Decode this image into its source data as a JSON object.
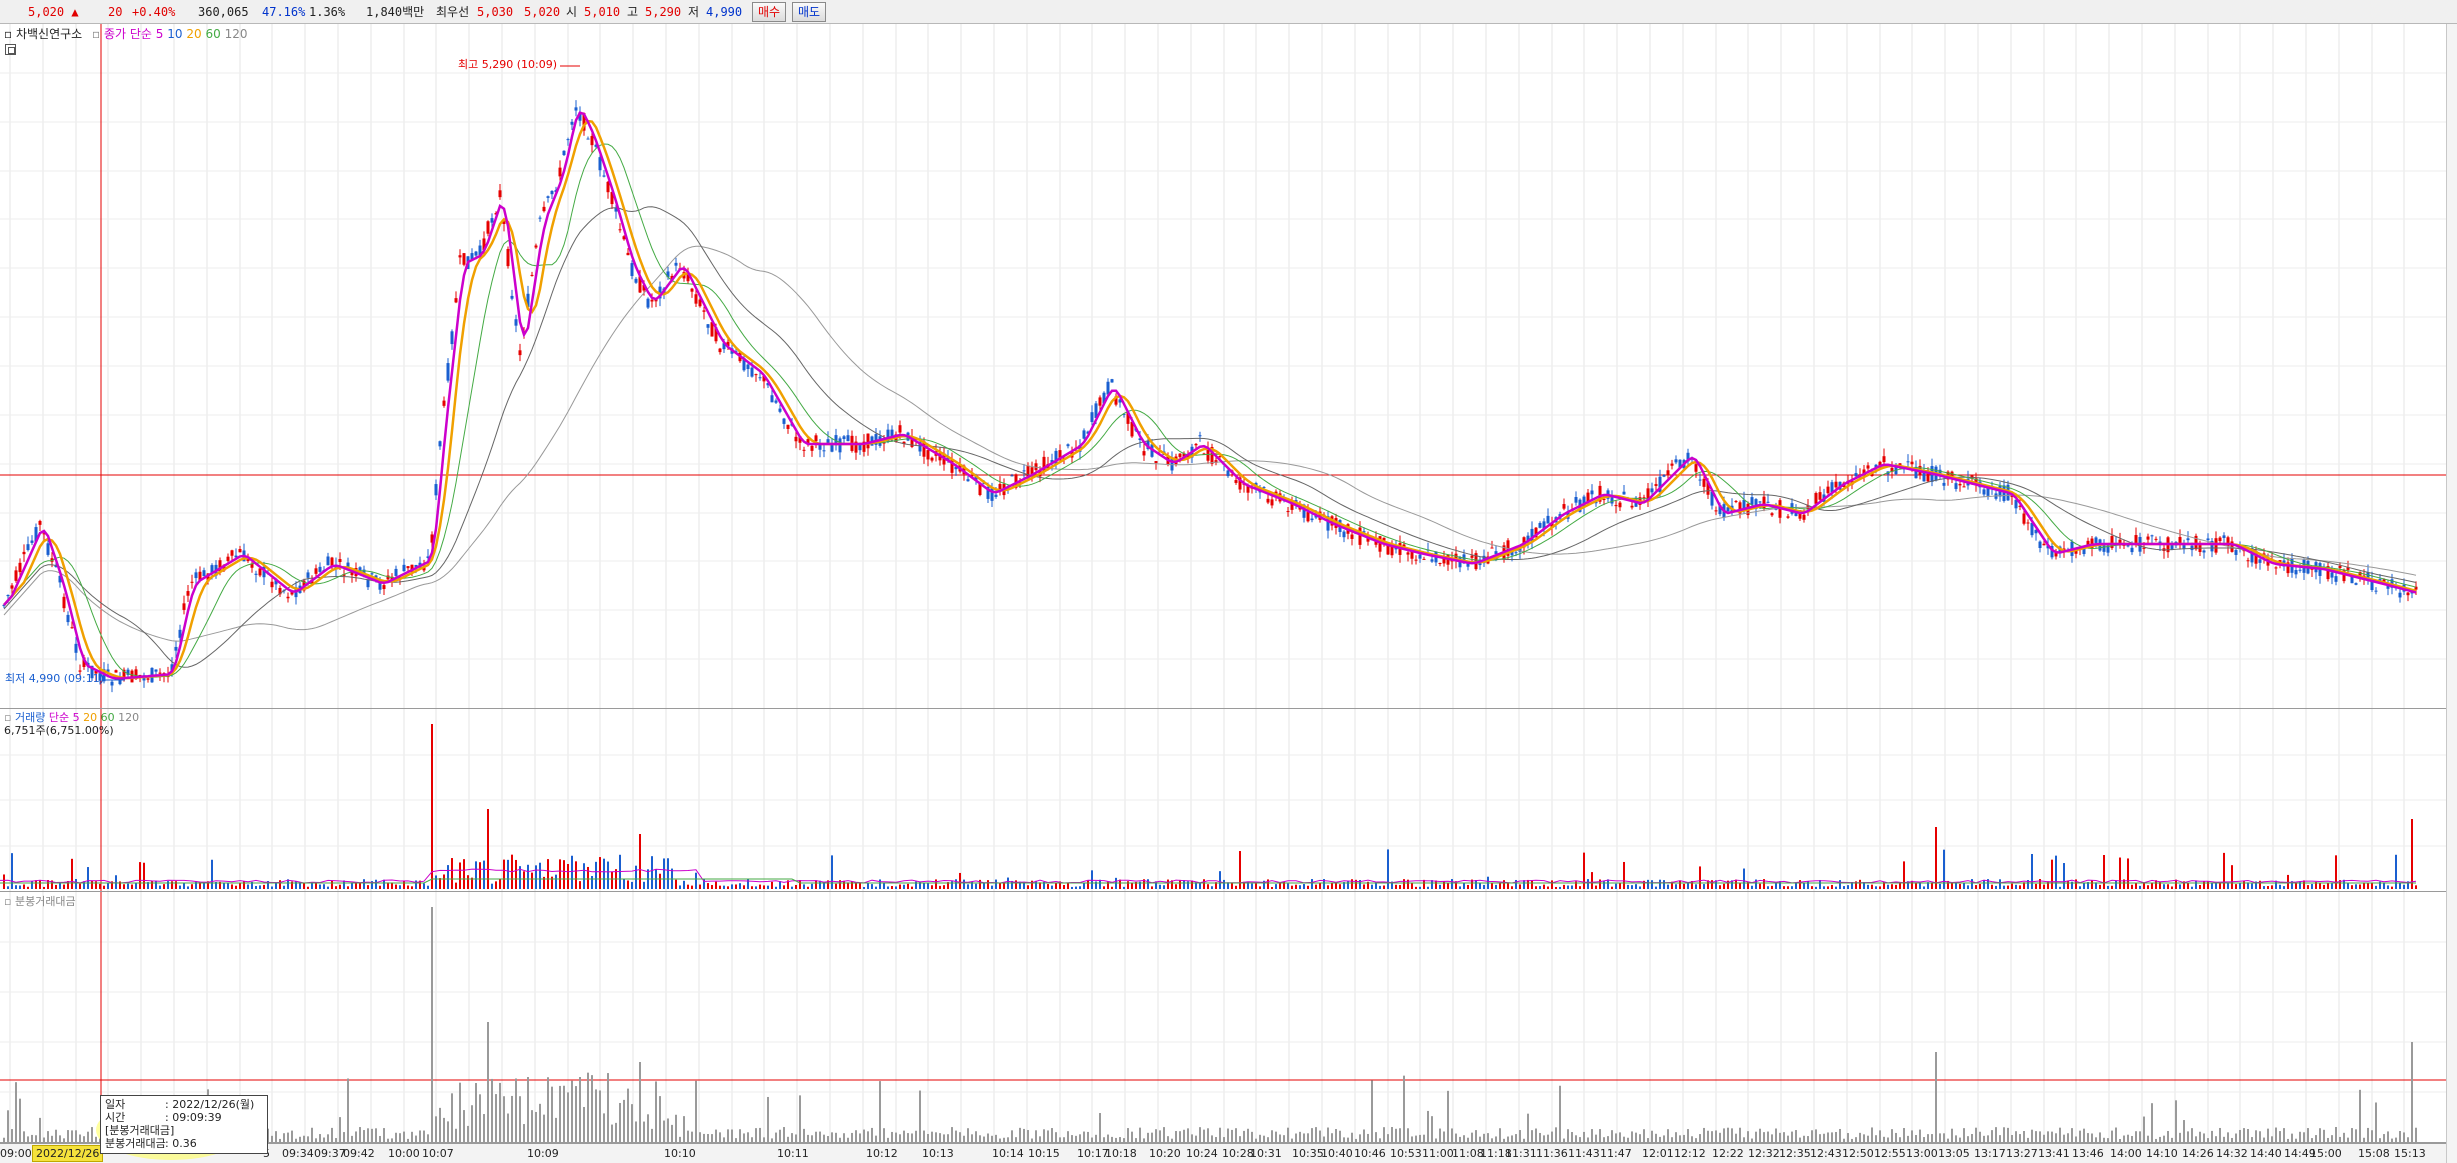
{
  "quote": {
    "price": "5,020",
    "arrow": "▲",
    "change": "20",
    "change_pct": "+0.40%",
    "volume": "360,065",
    "ratio1": "47.16%",
    "ratio2": "1.36%",
    "amount": "1,840백만",
    "best_label": "최우선",
    "best_ask": "5,030",
    "best_bid": "5,020",
    "open_label": "시",
    "open": "5,010",
    "high_label": "고",
    "high": "5,290",
    "low_label": "저",
    "low": "4,990",
    "buy_button": "매수",
    "sell_button": "매도"
  },
  "price_panel": {
    "stock_name": "차백신연구소",
    "indicator_label": "종가 단순",
    "ma_periods": [
      "5",
      "10",
      "20",
      "60",
      "120"
    ],
    "high_marker": "최고 5,290 (10:09)",
    "low_marker": "최저 4,990 (09:11)",
    "colors": {
      "candle_up": "#e60000",
      "candle_down": "#1a5fd0",
      "ma5": "#cc00cc",
      "ma10": "#f0a000",
      "ma20": "#44aa44",
      "ma60": "#666666",
      "ma120": "#999999",
      "crosshair": "#e60000"
    }
  },
  "volume_panel": {
    "indicator_label": "거래량",
    "ma_label": "단순",
    "ma_periods": [
      "5",
      "20",
      "60",
      "120"
    ],
    "value_label": "6,751주(6,751.00%)"
  },
  "amount_panel": {
    "indicator_label": "분봉거래대금"
  },
  "x_axis": {
    "highlighted_date": "2022/12/26",
    "ticks": [
      "09:00",
      "5",
      "09:34",
      "09:37",
      "09:42",
      "10:00",
      "10:07",
      "10:09",
      "10:10",
      "10:11",
      "10:12",
      "10:13",
      "10:14",
      "10:15",
      "10:17",
      "10:18",
      "10:20",
      "10:24",
      "10:28",
      "10:31",
      "10:35",
      "10:40",
      "10:46",
      "10:53",
      "11:00",
      "11:08",
      "11:18",
      "11:31",
      "11:36",
      "11:43",
      "11:47",
      "12:01",
      "12:12",
      "12:22",
      "12:32",
      "12:35",
      "12:43",
      "12:50",
      "12:55",
      "13:00",
      "13:05",
      "13:17",
      "13:27",
      "13:41",
      "13:46",
      "14:00",
      "14:10",
      "14:26",
      "14:32",
      "14:40",
      "14:49",
      "15:00",
      "15:08",
      "15:13"
    ]
  },
  "tooltip": {
    "date_label": "일자",
    "date_value": ": 2022/12/26(월)",
    "time_label": "시간",
    "time_value": ": 09:09:39",
    "section_label": "[분봉거래대금]",
    "amount_label": "분봉거래대금",
    "amount_value": ": 0.36"
  },
  "chart_data": {
    "type": "candlestick",
    "price_min": 4990,
    "price_max": 5290,
    "open": 5010,
    "high": 5290,
    "low": 4990,
    "last": 5020,
    "high_time": "10:09",
    "low_time": "09:11",
    "ma_periods": [
      5,
      10,
      20,
      60,
      120
    ]
  }
}
